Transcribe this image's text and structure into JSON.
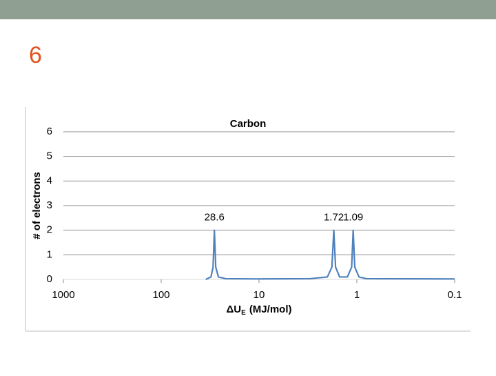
{
  "slide_number": "6",
  "chart_data": {
    "type": "line",
    "title": "Carbon",
    "y_label": "# of electrons",
    "x_label": [
      "ΔU",
      "E",
      "(MJ/mol)"
    ],
    "x_scale": "log",
    "xlim": [
      1000,
      0.1
    ],
    "xticks": [
      1000,
      100,
      10,
      1,
      0.1
    ],
    "ylim": [
      0,
      6
    ],
    "yticks": [
      0,
      1,
      2,
      3,
      4,
      5,
      6
    ],
    "grid": true,
    "series": [
      {
        "name": "Carbon",
        "color": "#4f81bd",
        "x": [
          35,
          31,
          29.5,
          28.6,
          27.7,
          26,
          22,
          10,
          3,
          2,
          1.8,
          1.72,
          1.65,
          1.5,
          1.25,
          1.13,
          1.09,
          1.05,
          0.95,
          0.8,
          0.1
        ],
        "values": [
          0,
          0.1,
          0.5,
          2,
          0.5,
          0.1,
          0.03,
          0.02,
          0.03,
          0.1,
          0.5,
          2,
          0.5,
          0.1,
          0.1,
          0.5,
          2,
          0.5,
          0.1,
          0.03,
          0.02
        ]
      }
    ]
  }
}
